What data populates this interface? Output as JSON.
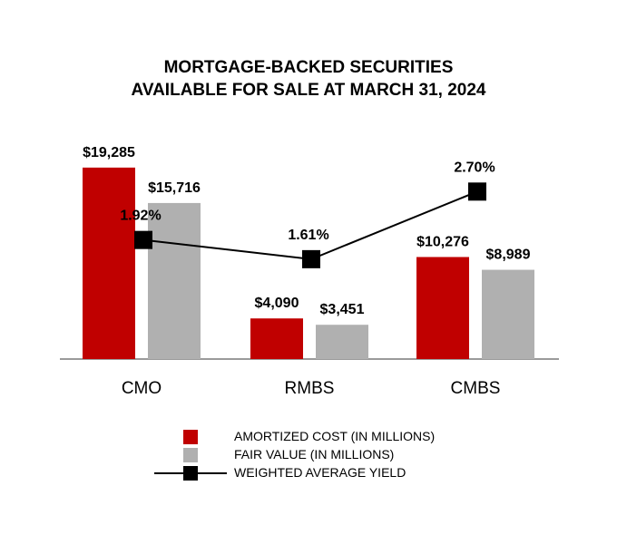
{
  "chart_data": {
    "type": "bar",
    "title_line1": "MORTGAGE-BACKED SECURITIES",
    "title_line2": "AVAILABLE FOR SALE AT MARCH 31, 2024",
    "categories": [
      "CMO",
      "RMBS",
      "CMBS"
    ],
    "series": [
      {
        "name": "AMORTIZED COST (IN MILLIONS)",
        "values": [
          19285,
          4090,
          10276
        ],
        "labels": [
          "$19,285",
          "$4,090",
          "$10,276"
        ],
        "color": "#c00000"
      },
      {
        "name": "FAIR VALUE (IN MILLIONS)",
        "values": [
          15716,
          3451,
          8989
        ],
        "labels": [
          "$15,716",
          "$3,451",
          "$8,989"
        ],
        "color": "#b0b0b0"
      }
    ],
    "line_series": {
      "name": "WEIGHTED AVERAGE YIELD",
      "values": [
        1.92,
        1.61,
        2.7
      ],
      "labels": [
        "1.92%",
        "1.61%",
        "2.70%"
      ],
      "color": "#000000"
    },
    "ylim": [
      0,
      20000
    ],
    "y2lim": [
      0,
      3.45
    ],
    "grid": false,
    "legend_position": "bottom"
  }
}
